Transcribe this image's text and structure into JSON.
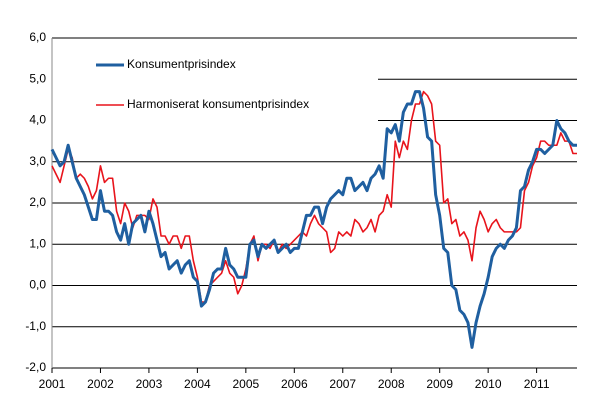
{
  "chart_data": {
    "type": "line",
    "categories": [
      "2001",
      null,
      null,
      null,
      null,
      null,
      null,
      null,
      null,
      null,
      null,
      null,
      "2002",
      null,
      null,
      null,
      null,
      null,
      null,
      null,
      null,
      null,
      null,
      null,
      "2003",
      null,
      null,
      null,
      null,
      null,
      null,
      null,
      null,
      null,
      null,
      null,
      "2004",
      null,
      null,
      null,
      null,
      null,
      null,
      null,
      null,
      null,
      null,
      null,
      "2005",
      null,
      null,
      null,
      null,
      null,
      null,
      null,
      null,
      null,
      null,
      null,
      "2006",
      null,
      null,
      null,
      null,
      null,
      null,
      null,
      null,
      null,
      null,
      null,
      "2007",
      null,
      null,
      null,
      null,
      null,
      null,
      null,
      null,
      null,
      null,
      null,
      "2008",
      null,
      null,
      null,
      null,
      null,
      null,
      null,
      null,
      null,
      null,
      null,
      "2009",
      null,
      null,
      null,
      null,
      null,
      null,
      null,
      null,
      null,
      null,
      null,
      "2010",
      null,
      null,
      null,
      null,
      null,
      null,
      null,
      null,
      null,
      null,
      null,
      "2011",
      null,
      null,
      null,
      null,
      null,
      null,
      null,
      null,
      null,
      null
    ],
    "series": [
      {
        "name": "Konsumentprisindex",
        "color": "#1f5fa0",
        "values": [
          3.3,
          3.1,
          2.9,
          3.0,
          3.4,
          3.0,
          2.6,
          2.4,
          2.2,
          1.9,
          1.6,
          1.6,
          2.3,
          1.8,
          1.8,
          1.7,
          1.3,
          1.1,
          1.5,
          1.0,
          1.5,
          1.6,
          1.7,
          1.3,
          1.8,
          1.5,
          1.1,
          0.7,
          0.8,
          0.4,
          0.5,
          0.6,
          0.3,
          0.5,
          0.6,
          0.2,
          0.1,
          -0.5,
          -0.4,
          -0.1,
          0.3,
          0.4,
          0.4,
          0.9,
          0.5,
          0.4,
          0.2,
          0.2,
          0.2,
          1.0,
          1.1,
          0.7,
          1.0,
          0.9,
          1.0,
          1.1,
          0.8,
          0.9,
          1.0,
          0.8,
          0.9,
          0.9,
          1.3,
          1.7,
          1.7,
          1.9,
          1.9,
          1.5,
          1.9,
          2.1,
          2.2,
          2.3,
          2.2,
          2.6,
          2.6,
          2.3,
          2.4,
          2.5,
          2.3,
          2.6,
          2.7,
          2.9,
          2.6,
          3.8,
          3.7,
          3.9,
          3.5,
          4.2,
          4.4,
          4.4,
          4.7,
          4.7,
          4.3,
          3.6,
          3.5,
          2.2,
          1.7,
          0.9,
          0.8,
          0.0,
          -0.1,
          -0.6,
          -0.7,
          -0.9,
          -1.5,
          -0.9,
          -0.5,
          -0.2,
          0.2,
          0.7,
          0.9,
          1.0,
          0.9,
          1.1,
          1.2,
          1.4,
          2.3,
          2.4,
          2.8,
          3.0,
          3.3,
          3.3,
          3.2,
          3.3,
          3.4,
          4.0,
          3.8,
          3.7,
          3.5,
          3.4,
          3.4
        ]
      },
      {
        "name": "Harmoniserat konsumentprisindex",
        "color": "#e8141c",
        "values": [
          2.9,
          2.7,
          2.5,
          2.9,
          3.3,
          3.1,
          2.6,
          2.7,
          2.6,
          2.4,
          2.1,
          2.3,
          2.9,
          2.5,
          2.6,
          2.6,
          1.8,
          1.5,
          2.0,
          1.8,
          1.4,
          1.7,
          1.7,
          1.7,
          1.6,
          2.1,
          1.9,
          1.2,
          1.2,
          1.0,
          1.2,
          1.2,
          0.9,
          1.2,
          1.2,
          0.6,
          0.2,
          -0.4,
          -0.4,
          0.0,
          0.1,
          0.2,
          0.3,
          0.6,
          0.3,
          0.2,
          -0.2,
          0.0,
          0.4,
          1.0,
          1.2,
          0.6,
          1.0,
          1.0,
          0.9,
          1.1,
          0.8,
          1.0,
          0.9,
          1.0,
          1.1,
          1.2,
          1.3,
          1.2,
          1.5,
          1.7,
          1.5,
          1.4,
          1.3,
          0.8,
          0.9,
          1.3,
          1.2,
          1.3,
          1.2,
          1.6,
          1.5,
          1.3,
          1.4,
          1.6,
          1.3,
          1.7,
          1.8,
          2.2,
          1.9,
          3.5,
          3.1,
          3.5,
          3.3,
          4.0,
          4.4,
          4.4,
          4.7,
          4.6,
          4.4,
          3.5,
          3.4,
          2.0,
          2.1,
          1.5,
          1.6,
          1.2,
          1.3,
          1.1,
          0.6,
          1.4,
          1.8,
          1.6,
          1.3,
          1.5,
          1.6,
          1.4,
          1.3,
          1.3,
          1.3,
          1.3,
          1.4,
          2.3,
          2.5,
          2.9,
          3.1,
          3.5,
          3.5,
          3.4,
          3.4,
          3.4,
          3.7,
          3.5,
          3.5,
          3.2,
          3.2
        ]
      }
    ],
    "ylim": [
      -2,
      6
    ],
    "yticks": [
      {
        "value": -2,
        "label": "-2,0"
      },
      {
        "value": -1,
        "label": "-1,0"
      },
      {
        "value": 0,
        "label": "0,0"
      },
      {
        "value": 1,
        "label": "1,0"
      },
      {
        "value": 2,
        "label": "2,0"
      },
      {
        "value": 3,
        "label": "3,0"
      },
      {
        "value": 4,
        "label": "4,0"
      },
      {
        "value": 5,
        "label": "5,0"
      },
      {
        "value": 6,
        "label": "6,0"
      }
    ],
    "grid": true
  }
}
